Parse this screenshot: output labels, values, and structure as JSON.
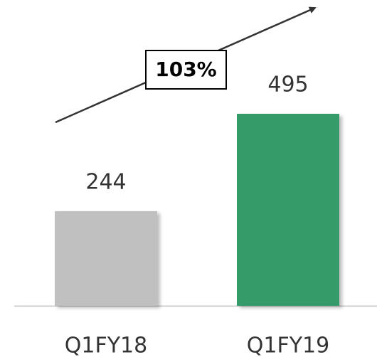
{
  "chart_data": {
    "type": "bar",
    "categories": [
      "Q1FY18",
      "Q1FY19"
    ],
    "values": [
      244,
      495
    ],
    "colors": [
      "#c0c0c0",
      "#359b68"
    ],
    "annotation": "103%"
  }
}
